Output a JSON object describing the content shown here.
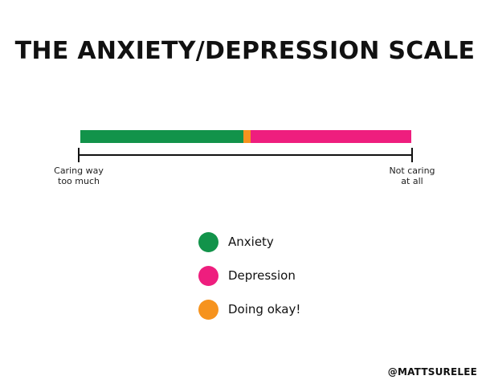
{
  "title": "THE ANXIETY/DEPRESSION SCALE",
  "scale": {
    "segments": [
      {
        "key": "anxiety",
        "fraction": 0.493,
        "color": "#12934a"
      },
      {
        "key": "doing_okay",
        "fraction": 0.022,
        "color": "#f6931e"
      },
      {
        "key": "depression",
        "fraction": 0.485,
        "color": "#ee1e7e"
      }
    ],
    "left_label": [
      "Caring way",
      "too much"
    ],
    "right_label": [
      "Not caring",
      "at all"
    ]
  },
  "legend": [
    {
      "label": "Anxiety",
      "color": "#12934a",
      "icon": "green-circle-icon"
    },
    {
      "label": "Depression",
      "color": "#ee1e7e",
      "icon": "pink-circle-icon"
    },
    {
      "label": "Doing okay!",
      "color": "#f6931e",
      "icon": "orange-circle-icon"
    }
  ],
  "credit": "@MATTSURELEE"
}
